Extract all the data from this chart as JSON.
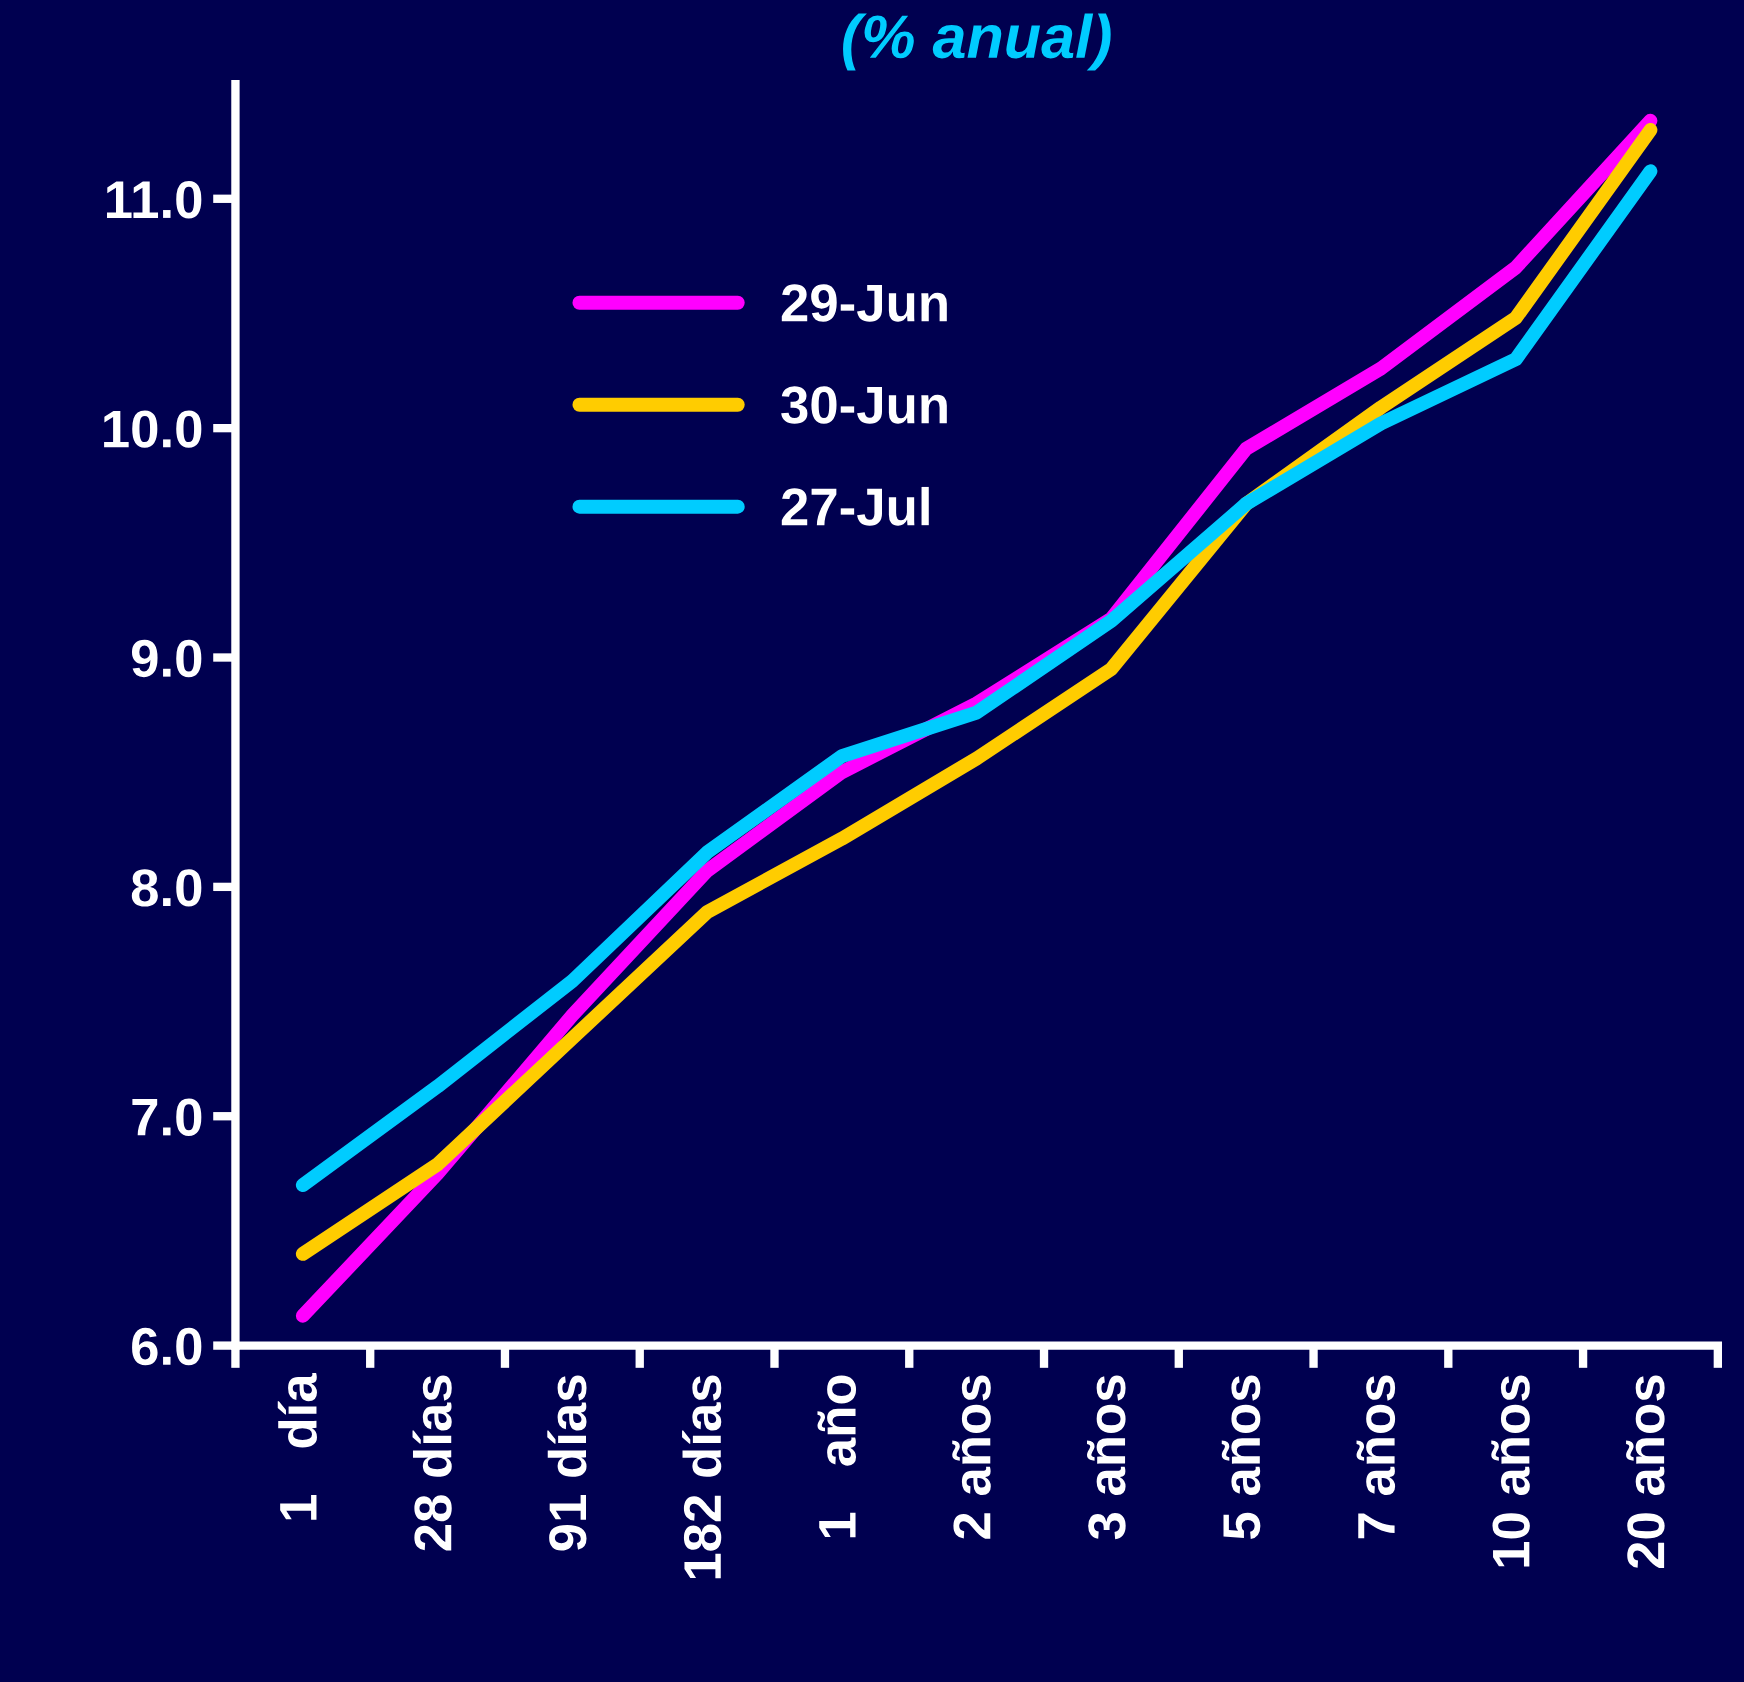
{
  "chart_data": {
    "type": "line",
    "title": "(% anual)",
    "categories": [
      "1   día",
      "28 días",
      "91 días",
      "182 días",
      "1   año",
      "2 años",
      "3 años",
      "5 años",
      "7 años",
      "10 años",
      "20 años"
    ],
    "series": [
      {
        "name": "29-Jun",
        "color": "#ff00ff",
        "values": [
          6.13,
          6.75,
          7.44,
          8.07,
          8.5,
          8.8,
          9.17,
          9.91,
          10.26,
          10.7,
          11.34
        ]
      },
      {
        "name": "30-Jun",
        "color": "#ffcc00",
        "values": [
          6.4,
          6.79,
          7.34,
          7.89,
          8.21,
          8.56,
          8.95,
          9.67,
          10.09,
          10.48,
          11.3
        ]
      },
      {
        "name": "27-Jul",
        "color": "#00ccff",
        "values": [
          6.7,
          7.13,
          7.59,
          8.15,
          8.57,
          8.76,
          9.16,
          9.67,
          10.02,
          10.3,
          11.12
        ]
      }
    ],
    "ylim": [
      6.0,
      11.5
    ],
    "yticks": [
      {
        "value": 6,
        "label": "6.0"
      },
      {
        "value": 7,
        "label": "7.0"
      },
      {
        "value": 8,
        "label": "8.0"
      },
      {
        "value": 9,
        "label": "9.0"
      },
      {
        "value": 10,
        "label": "10.0"
      },
      {
        "value": 11,
        "label": "11.0"
      }
    ],
    "grid": false,
    "legend": "top left",
    "marker": "none",
    "line_style": "solid"
  }
}
